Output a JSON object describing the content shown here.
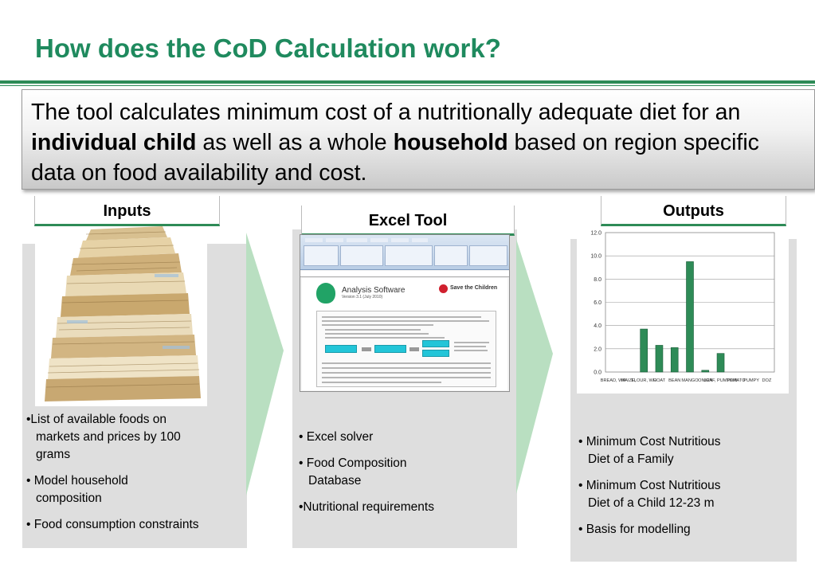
{
  "slide": {
    "title": "How does the CoD Calculation work?",
    "summary": {
      "part1": "The tool calculates minimum cost of a nutritionally adequate diet for an ",
      "bold1": "individual child",
      "part2": " as well as a whole ",
      "bold2": "household",
      "part3": " based on region specific data on food availability and cost."
    },
    "colors": {
      "accent": "#2e8b57",
      "title": "#1f8a5e",
      "panel": "#dedede",
      "arrow": "#b9dfc1",
      "bar": "#2e8b57"
    }
  },
  "inputs": {
    "header": "Inputs",
    "image": "stack-of-papers",
    "items": [
      {
        "l1": "•List of available foods on",
        "l2": "markets and prices by 100",
        "l3": "grams"
      },
      {
        "l1": "• Model household",
        "l2": "composition"
      },
      {
        "l1": "• Food consumption  constraints"
      }
    ]
  },
  "tool": {
    "header": "Excel Tool",
    "screenshot": {
      "app_title": "Analysis Software",
      "version": "Version 3.1 (July 2010)",
      "org": "Save the Children",
      "logo": "cod-logo",
      "org_logo": "save-the-children-logo"
    },
    "items": [
      {
        "l1": "• Excel solver"
      },
      {
        "l1": "• Food Composition",
        "l2": "Database"
      },
      {
        "l1": "•Nutritional requirements"
      }
    ]
  },
  "outputs": {
    "header": "Outputs",
    "items": [
      {
        "l1": "• Minimum Cost Nutritious",
        "l2": "Diet of a Family"
      },
      {
        "l1": "• Minimum Cost Nutritious",
        "l2": "Diet of a Child 12-23 m"
      },
      {
        "l1": "• Basis for modelling"
      }
    ]
  },
  "chart_data": {
    "type": "bar",
    "categories": [
      "BREAD, WHITE",
      "MAIZE, FLOUR, WHITE",
      "GOAT",
      "BEAN",
      "MANGO",
      "ONION",
      "LEAF, PUMPKIN",
      "TOMATO",
      "PUMPKIN",
      "EGG, HEN",
      "DOZ"
    ],
    "tick_labels": [
      "BREAD, WH",
      "MAIZE,",
      "FLOUR, WH",
      "GOAT",
      "BEAN",
      "MANGO",
      "ONION",
      "LEAF, PUMPKIN",
      "TOMATO",
      "PUMPY",
      "DOZ"
    ],
    "values": [
      0,
      0,
      3.7,
      2.3,
      2.1,
      9.5,
      0.15,
      1.6,
      0,
      0,
      0
    ],
    "ylim": [
      0,
      12
    ],
    "yticks": [
      "0.0",
      "2.0",
      "4.0",
      "6.0",
      "8.0",
      "10.0",
      "12.0"
    ],
    "grid": true,
    "legend": "none",
    "xlabel": "",
    "ylabel": ""
  }
}
